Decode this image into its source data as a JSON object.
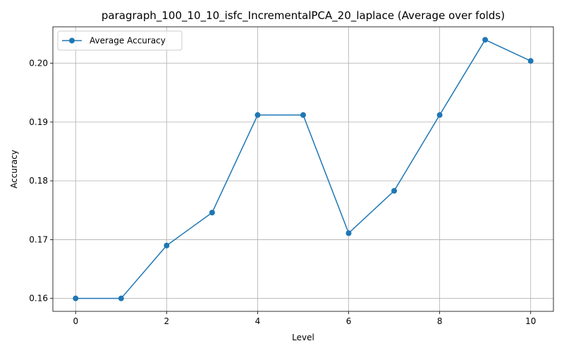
{
  "chart_data": {
    "type": "line",
    "title": "paragraph_100_10_10_isfc_IncrementalPCA_20_laplace (Average over folds)",
    "xlabel": "Level",
    "ylabel": "Accuracy",
    "xlim": [
      -0.5,
      10.5
    ],
    "ylim": [
      0.1578,
      0.2062
    ],
    "xticks": [
      0,
      2,
      4,
      6,
      8,
      10
    ],
    "xtick_labels": [
      "0",
      "2",
      "4",
      "6",
      "8",
      "10"
    ],
    "yticks": [
      0.16,
      0.17,
      0.18,
      0.19,
      0.2
    ],
    "ytick_labels": [
      "0.16",
      "0.17",
      "0.18",
      "0.19",
      "0.20"
    ],
    "grid": true,
    "legend_position": "top-left",
    "series": [
      {
        "name": "Average Accuracy",
        "color": "#1f77b4",
        "marker": "circle",
        "x": [
          0,
          1,
          2,
          3,
          4,
          5,
          6,
          7,
          8,
          9,
          10
        ],
        "values": [
          0.16,
          0.16,
          0.169,
          0.1746,
          0.1912,
          0.1912,
          0.1711,
          0.1783,
          0.1912,
          0.204,
          0.2004
        ]
      }
    ]
  }
}
